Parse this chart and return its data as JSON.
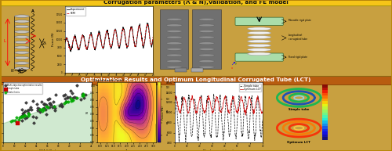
{
  "title_top": "Corrugation parameters (Λ & N),Validation, and FE model",
  "title_bottom": "Optimization Results and Optimum Longitudinal Corrugated Tube (LCT)",
  "top_bg": "#e8d5a0",
  "bottom_bg": "#c8732a",
  "title_top_bg": "#f5c518",
  "title_bottom_bg": "#b85c10",
  "fig_bg": "#c8a040",
  "outer_border_color": "#b8860b"
}
